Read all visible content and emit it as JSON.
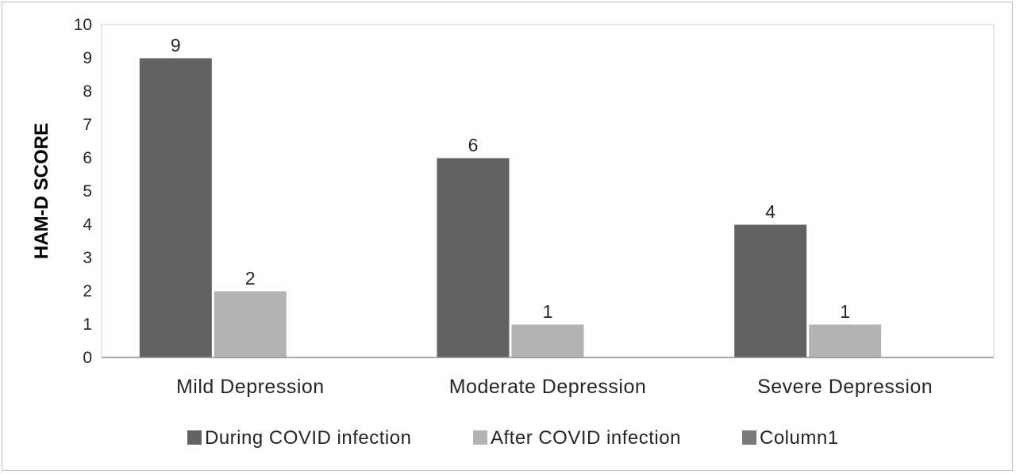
{
  "chart_data": {
    "type": "bar",
    "title": "",
    "xlabel": "",
    "ylabel": "HAM-D SCORE",
    "ylim": [
      0,
      10
    ],
    "yticks": [
      0,
      1,
      2,
      3,
      4,
      5,
      6,
      7,
      8,
      9,
      10
    ],
    "grid": false,
    "legend_position": "bottom",
    "categories": [
      "Mild Depression",
      "Moderate Depression",
      "Severe Depression"
    ],
    "series": [
      {
        "name": "During COVID infection",
        "values": [
          9,
          6,
          4
        ],
        "color": "#626262"
      },
      {
        "name": "After COVID infection",
        "values": [
          2,
          1,
          1
        ],
        "color": "#b3b3b3"
      },
      {
        "name": "Column1",
        "values": [
          null,
          null,
          null
        ],
        "color": "#7a7a7a"
      }
    ]
  }
}
